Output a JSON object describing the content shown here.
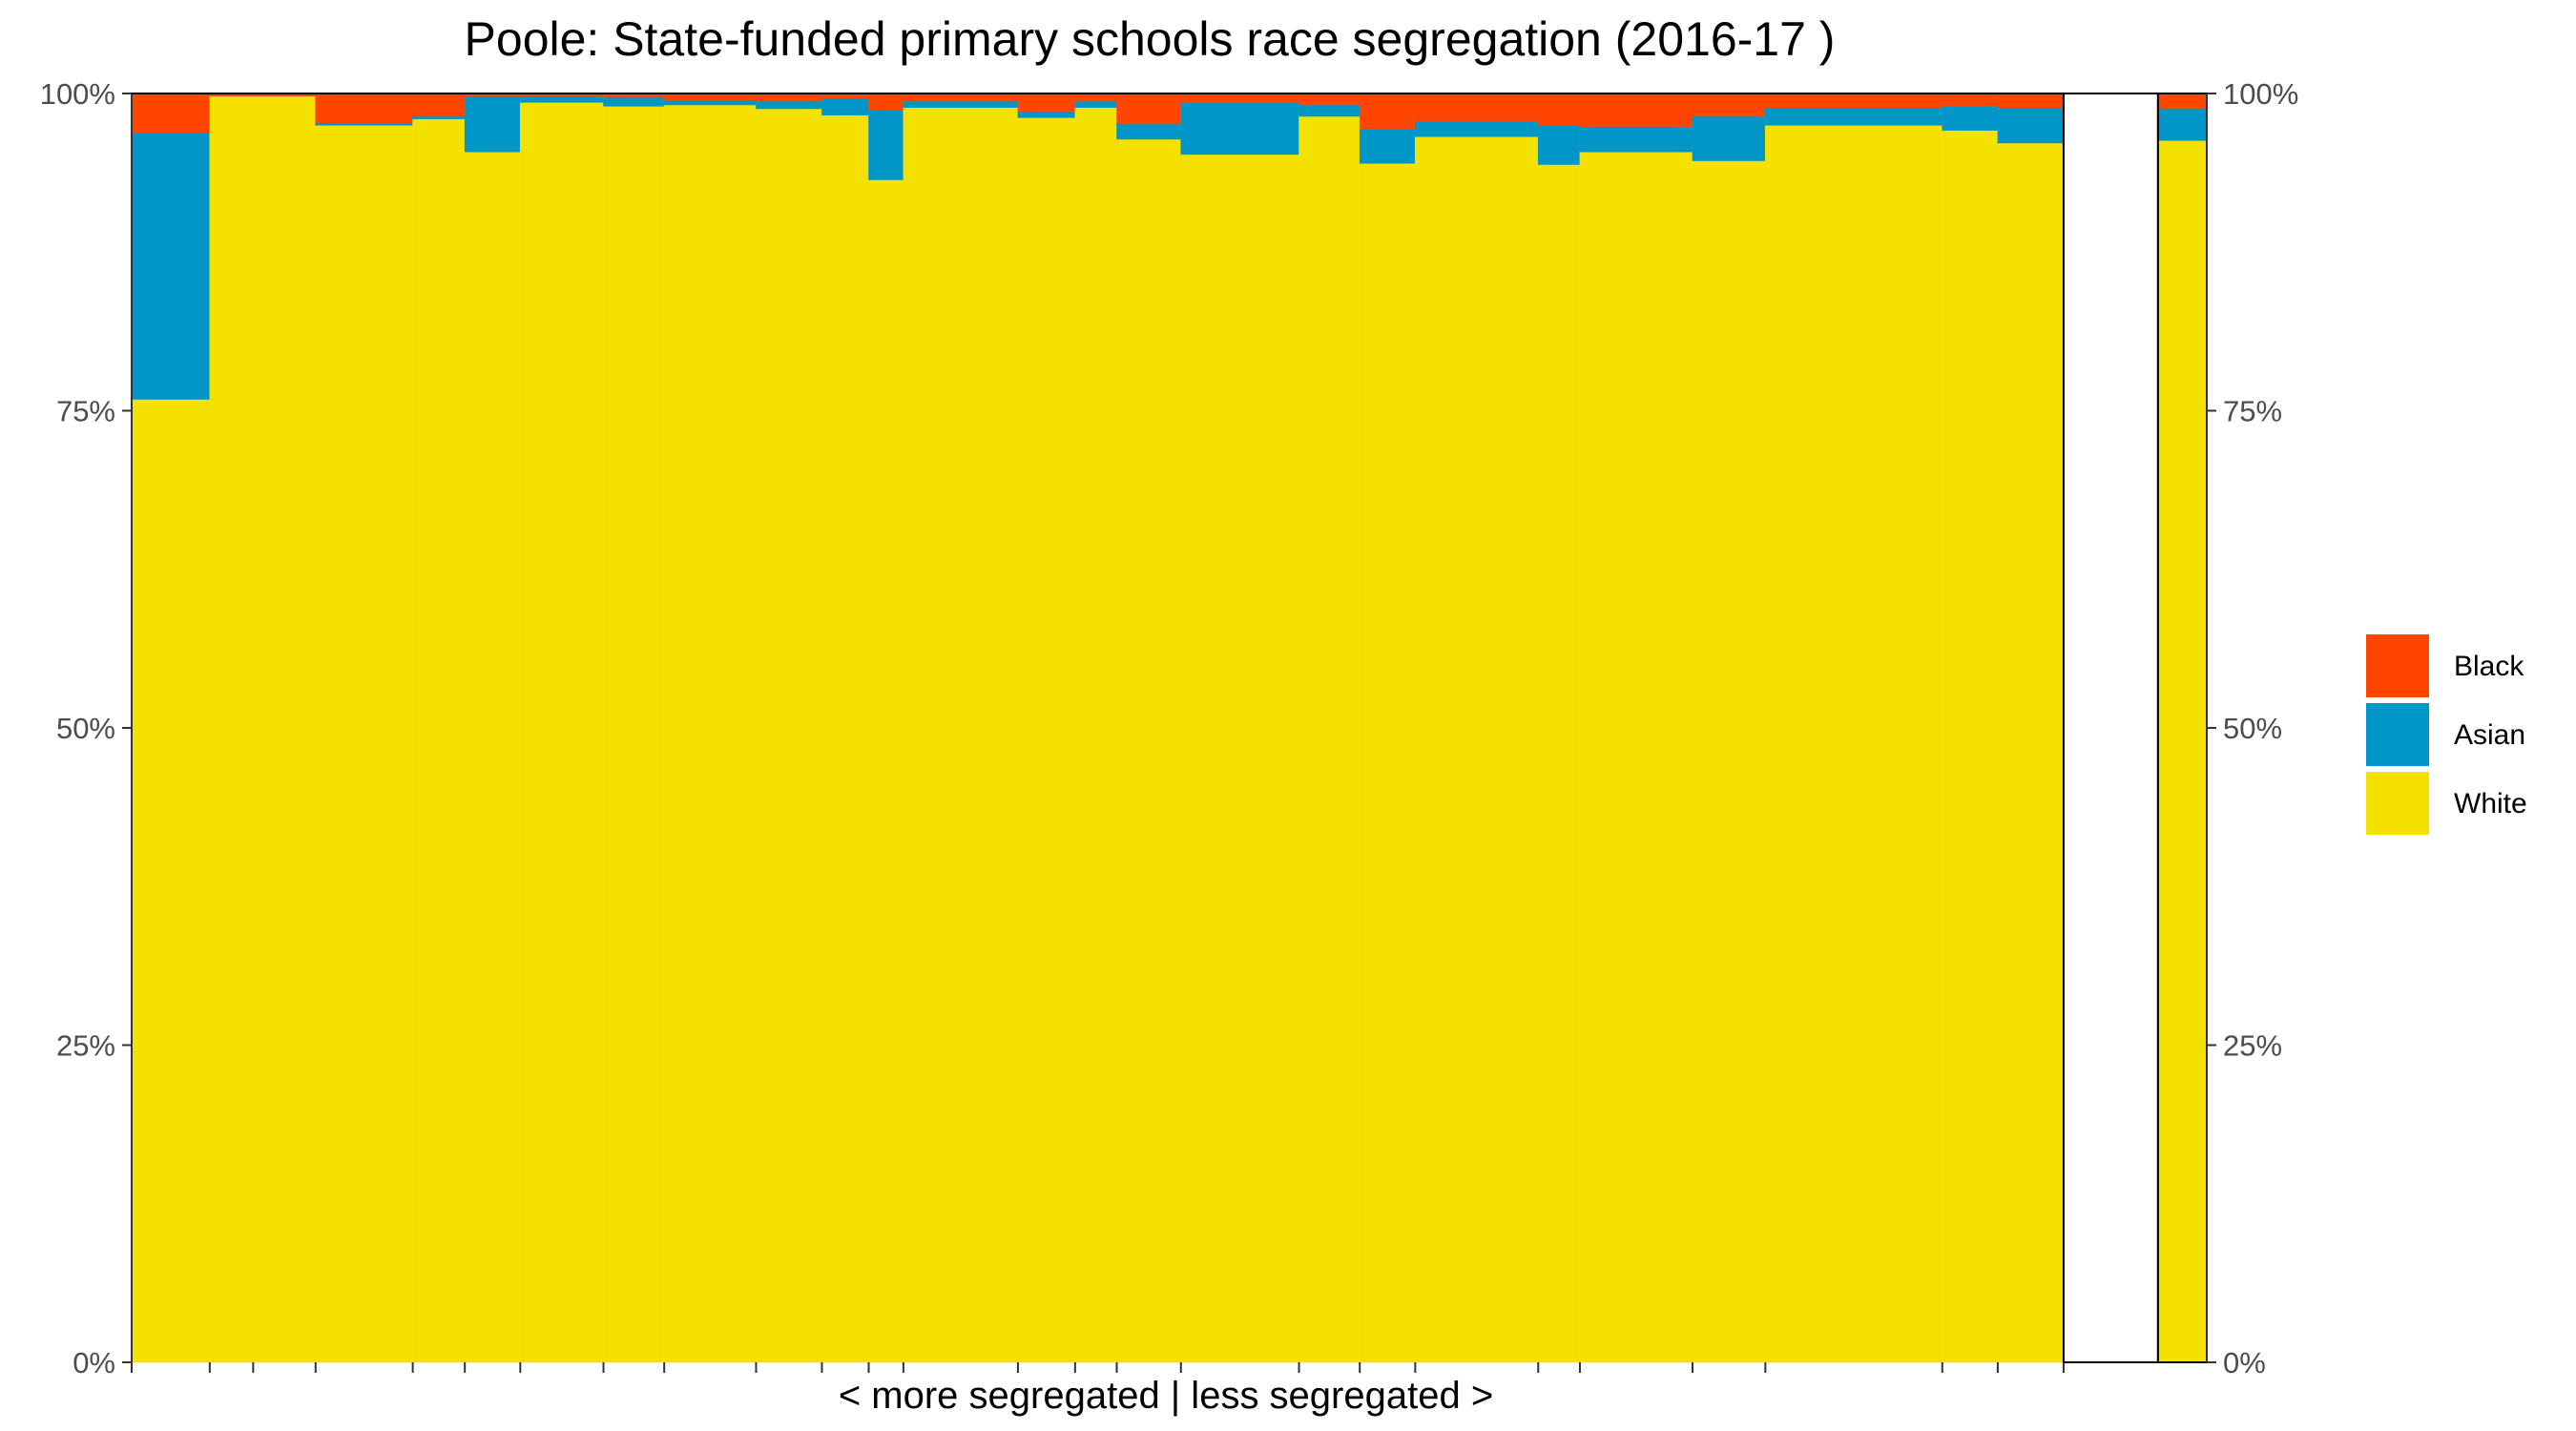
{
  "chart_data": {
    "type": "bar",
    "variant": "stacked-variable-width (marimekko)",
    "title": "Poole: State-funded primary schools race segregation (2016-17 )",
    "xlabel": "< more segregated | less segregated >",
    "ylabel": "",
    "ylim": [
      0,
      1
    ],
    "y_ticks": [
      "0%",
      "25%",
      "50%",
      "75%",
      "100%"
    ],
    "y_axis_sides": [
      "left",
      "right"
    ],
    "x_range": [
      0,
      1.1
    ],
    "grid": false,
    "legend_position": "right",
    "colors": {
      "Black": "#FF4500",
      "Asian": "#0096C8",
      "White": "#F5E100"
    },
    "stack_order_bottom_to_top": [
      "White",
      "Asian",
      "Black"
    ],
    "legend": [
      "Black",
      "Asian",
      "White"
    ],
    "schools": [
      {
        "width": 0.0414,
        "White": 0.759,
        "Asian": 0.21,
        "Black": 0.031
      },
      {
        "width": 0.023,
        "White": 0.998,
        "Asian": 0.0,
        "Black": 0.002
      },
      {
        "width": 0.0331,
        "White": 0.998,
        "Asian": 0.0,
        "Black": 0.002
      },
      {
        "width": 0.0515,
        "White": 0.975,
        "Asian": 0.002,
        "Black": 0.023
      },
      {
        "width": 0.0276,
        "White": 0.98,
        "Asian": 0.002,
        "Black": 0.018
      },
      {
        "width": 0.0294,
        "White": 0.954,
        "Asian": 0.044,
        "Black": 0.002
      },
      {
        "width": 0.0441,
        "White": 0.993,
        "Asian": 0.005,
        "Black": 0.002
      },
      {
        "width": 0.0322,
        "White": 0.99,
        "Asian": 0.007,
        "Black": 0.003
      },
      {
        "width": 0.0487,
        "White": 0.991,
        "Asian": 0.004,
        "Black": 0.005
      },
      {
        "width": 0.0349,
        "White": 0.988,
        "Asian": 0.006,
        "Black": 0.006
      },
      {
        "width": 0.0248,
        "White": 0.983,
        "Asian": 0.013,
        "Black": 0.004
      },
      {
        "width": 0.0184,
        "White": 0.932,
        "Asian": 0.055,
        "Black": 0.013
      },
      {
        "width": 0.0607,
        "White": 0.989,
        "Asian": 0.005,
        "Black": 0.006
      },
      {
        "width": 0.0303,
        "White": 0.981,
        "Asian": 0.005,
        "Black": 0.014
      },
      {
        "width": 0.0221,
        "White": 0.989,
        "Asian": 0.005,
        "Black": 0.006
      },
      {
        "width": 0.034,
        "White": 0.964,
        "Asian": 0.012,
        "Black": 0.024
      },
      {
        "width": 0.0626,
        "White": 0.952,
        "Asian": 0.041,
        "Black": 0.007
      },
      {
        "width": 0.0322,
        "White": 0.982,
        "Asian": 0.009,
        "Black": 0.009
      },
      {
        "width": 0.0294,
        "White": 0.945,
        "Asian": 0.027,
        "Black": 0.028
      },
      {
        "width": 0.0652,
        "White": 0.966,
        "Asian": 0.012,
        "Black": 0.022
      },
      {
        "width": 0.0221,
        "White": 0.944,
        "Asian": 0.031,
        "Black": 0.025
      },
      {
        "width": 0.0597,
        "White": 0.954,
        "Asian": 0.02,
        "Black": 0.026
      },
      {
        "width": 0.0386,
        "White": 0.947,
        "Asian": 0.035,
        "Black": 0.018
      },
      {
        "width": 0.0938,
        "White": 0.975,
        "Asian": 0.014,
        "Black": 0.011
      },
      {
        "width": 0.0294,
        "White": 0.971,
        "Asian": 0.019,
        "Black": 0.01
      },
      {
        "width": 0.0349,
        "White": 0.961,
        "Asian": 0.028,
        "Black": 0.011
      }
    ],
    "overall": {
      "label": "",
      "White": 0.963,
      "Asian": 0.025,
      "Black": 0.012
    }
  }
}
